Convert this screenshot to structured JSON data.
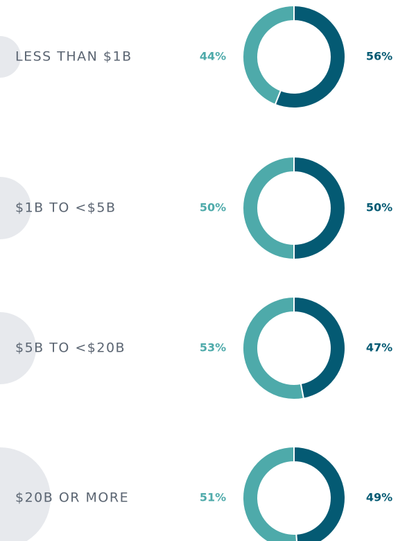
{
  "chart_data": [
    {
      "type": "pie",
      "donut": true,
      "title": "LESS THAN $1B",
      "values": [
        44,
        56
      ],
      "value_labels": [
        "44%",
        "56%"
      ],
      "colors": [
        "#4eaaaa",
        "#045a73"
      ]
    },
    {
      "type": "pie",
      "donut": true,
      "title": "$1B TO <$5B",
      "values": [
        50,
        50
      ],
      "value_labels": [
        "50%",
        "50%"
      ],
      "colors": [
        "#4eaaaa",
        "#045a73"
      ]
    },
    {
      "type": "pie",
      "donut": true,
      "title": "$5B TO <$20B",
      "values": [
        53,
        47
      ],
      "value_labels": [
        "53%",
        "47%"
      ],
      "colors": [
        "#4eaaaa",
        "#045a73"
      ]
    },
    {
      "type": "pie",
      "donut": true,
      "title": "$20B OR MORE",
      "values": [
        51,
        49
      ],
      "value_labels": [
        "51%",
        "49%"
      ],
      "colors": [
        "#4eaaaa",
        "#045a73"
      ]
    }
  ]
}
